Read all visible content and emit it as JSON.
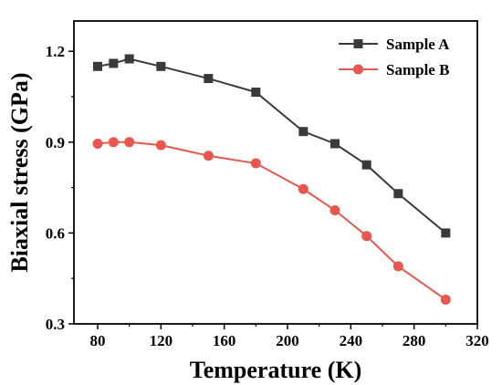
{
  "chart_data": {
    "type": "line",
    "title": "",
    "xlabel": "Temperature (K)",
    "ylabel": "Biaxial stress (GPa)",
    "xlim": [
      65,
      320
    ],
    "ylim": [
      0.3,
      1.3
    ],
    "xticks": [
      80,
      120,
      160,
      200,
      240,
      280,
      320
    ],
    "yticks": [
      0.3,
      0.6,
      0.9,
      1.2
    ],
    "x": [
      80,
      90,
      100,
      120,
      150,
      180,
      210,
      230,
      250,
      270,
      300
    ],
    "series": [
      {
        "name": "Sample A",
        "color": "#3a3a3a",
        "marker": "square",
        "values": [
          1.15,
          1.16,
          1.175,
          1.15,
          1.11,
          1.065,
          0.935,
          0.895,
          0.825,
          0.73,
          0.6
        ]
      },
      {
        "name": "Sample B",
        "color": "#e8574f",
        "marker": "circle",
        "values": [
          0.895,
          0.9,
          0.9,
          0.89,
          0.855,
          0.83,
          0.745,
          0.675,
          0.59,
          0.49,
          0.38
        ]
      }
    ],
    "legend_position": "top-right",
    "grid": false
  }
}
